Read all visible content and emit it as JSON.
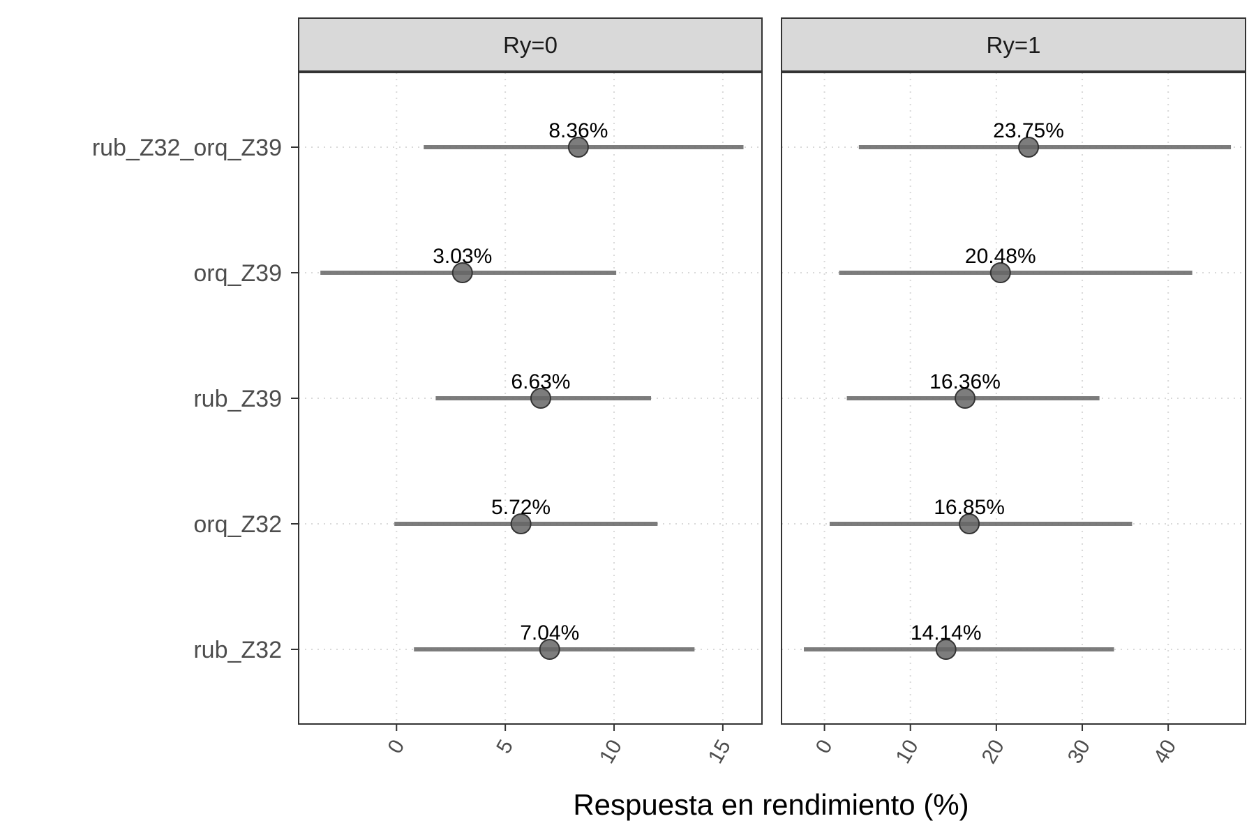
{
  "chart_data": {
    "type": "dot-errorbar-faceted",
    "xlabel": "Respuesta en rendimiento (%)",
    "ylabel": "",
    "categories": [
      "rub_Z32_orq_Z39",
      "orq_Z39",
      "rub_Z39",
      "orq_Z32",
      "rub_Z32"
    ],
    "grid": true,
    "facets": [
      {
        "strip": "Ry=0",
        "xlim": [
          -4.5,
          16.8
        ],
        "xticks": [
          0,
          5,
          10,
          15
        ],
        "points": [
          {
            "category": "rub_Z32_orq_Z39",
            "value": 8.36,
            "low": 1.25,
            "high": 15.95,
            "label": "8.36%"
          },
          {
            "category": "orq_Z39",
            "value": 3.03,
            "low": -3.5,
            "high": 10.1,
            "label": "3.03%"
          },
          {
            "category": "rub_Z39",
            "value": 6.63,
            "low": 1.8,
            "high": 11.7,
            "label": "6.63%"
          },
          {
            "category": "orq_Z32",
            "value": 5.72,
            "low": -0.1,
            "high": 12.0,
            "label": "5.72%"
          },
          {
            "category": "rub_Z32",
            "value": 7.04,
            "low": 0.8,
            "high": 13.7,
            "label": "7.04%"
          }
        ]
      },
      {
        "strip": "Ry=1",
        "xlim": [
          -5,
          49
        ],
        "xticks": [
          0,
          10,
          20,
          30,
          40
        ],
        "points": [
          {
            "category": "rub_Z32_orq_Z39",
            "value": 23.75,
            "low": 4,
            "high": 47.3,
            "label": "23.75%"
          },
          {
            "category": "orq_Z39",
            "value": 20.48,
            "low": 1.7,
            "high": 42.8,
            "label": "20.48%"
          },
          {
            "category": "rub_Z39",
            "value": 16.36,
            "low": 2.6,
            "high": 32.0,
            "label": "16.36%"
          },
          {
            "category": "orq_Z32",
            "value": 16.85,
            "low": 0.6,
            "high": 35.8,
            "label": "16.85%"
          },
          {
            "category": "rub_Z32",
            "value": 14.14,
            "low": -2.4,
            "high": 33.7,
            "label": "14.14%"
          }
        ]
      }
    ],
    "colors": {
      "strip_bg": "#d9d9d9",
      "panel_border": "#333333",
      "grid": "#d9d9d9",
      "bar": "#6e6e6e",
      "point": "#666666",
      "point_stroke": "#333333"
    }
  }
}
